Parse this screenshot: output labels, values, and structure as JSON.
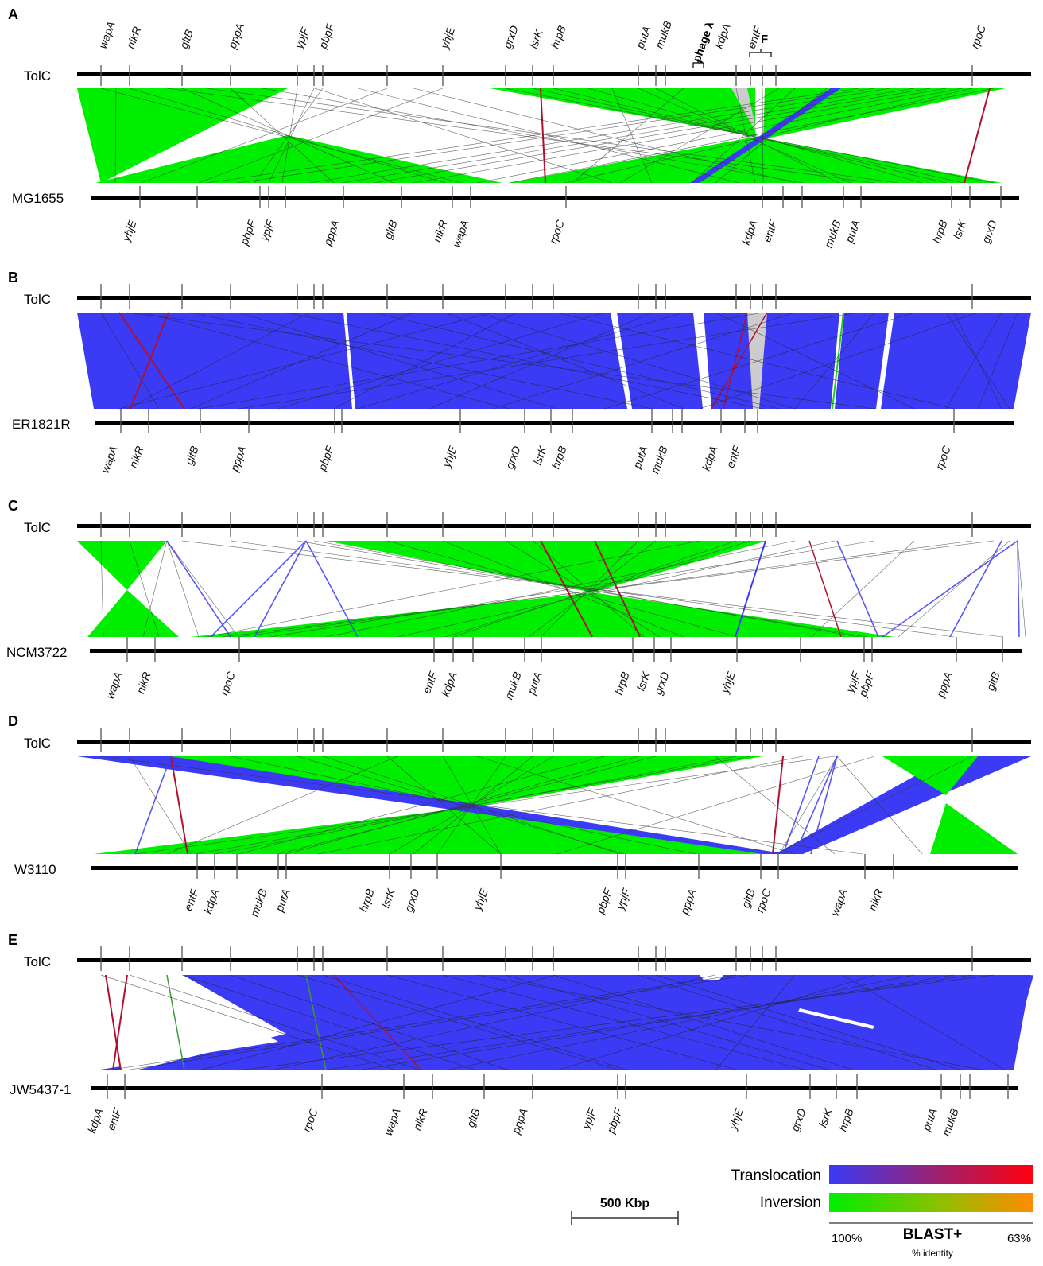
{
  "panels": [
    {
      "letter": "A",
      "ref": "TolC",
      "query": "MG1655",
      "ref_genes": [
        "wapA",
        "nikR",
        "gltB",
        "pppA",
        "ypjF",
        "pbpF",
        "yhjE",
        "grxD",
        "lsrK",
        "hrpB",
        "putA",
        "mukB",
        "kdpA",
        "entF",
        "rpoC"
      ],
      "ref_annotations": [
        "phage λ",
        "F"
      ],
      "query_genes": [
        "yhjE",
        "pbpF",
        "ypjF",
        "pppA",
        "gltB",
        "nikR",
        "wapA",
        "rpoC",
        "kdpA",
        "entF",
        "mukB",
        "putA",
        "hrpB",
        "lsrK",
        "grxD"
      ]
    },
    {
      "letter": "B",
      "ref": "TolC",
      "query": "ER1821R",
      "query_genes": [
        "wapA",
        "nikR",
        "gltB",
        "pppA",
        "pbpF",
        "yhjE",
        "grxD",
        "lsrK",
        "hrpB",
        "putA",
        "mukB",
        "kdpA",
        "entF",
        "rpoC"
      ]
    },
    {
      "letter": "C",
      "ref": "TolC",
      "query": "NCM3722",
      "query_genes": [
        "wapA",
        "nikR",
        "rpoC",
        "entF",
        "kdpA",
        "mukB",
        "putA",
        "hrpB",
        "lsrK",
        "grxD",
        "yhjE",
        "ypjF",
        "pbpF",
        "pppA",
        "gltB"
      ]
    },
    {
      "letter": "D",
      "ref": "TolC",
      "query": "W3110",
      "query_genes": [
        "entF",
        "kdpA",
        "mukB",
        "putA",
        "hrpB",
        "lsrK",
        "grxD",
        "yhjE",
        "pbpF",
        "ypjF",
        "pppA",
        "gltB",
        "rpoC",
        "wapA",
        "nikR"
      ]
    },
    {
      "letter": "E",
      "ref": "TolC",
      "query": "JW5437-1",
      "query_genes": [
        "kdpA",
        "entF",
        "rpoC",
        "wapA",
        "nikR",
        "gltB",
        "pppA",
        "ypjF",
        "pbpF",
        "yhjE",
        "grxD",
        "lsrK",
        "hrpB",
        "putA",
        "mukB"
      ]
    }
  ],
  "scale_bar": {
    "label": "500 Kbp"
  },
  "legend": {
    "translocation_label": "Translocation",
    "inversion_label": "Inversion",
    "left_value": "100%",
    "right_value": "63%",
    "method": "BLAST+",
    "unit": "% identity",
    "colors": {
      "translocation_start": "#3b3bf5",
      "translocation_end": "#ff0010",
      "inversion_start": "#00ee00",
      "inversion_end": "#ff8c00"
    }
  }
}
